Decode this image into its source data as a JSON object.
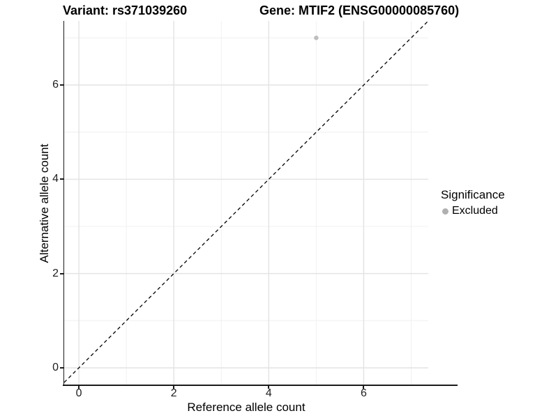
{
  "chart_data": {
    "type": "scatter",
    "title_left": "Variant: rs371039260",
    "title_right": "Gene: MTIF2 (ENSG00000085760)",
    "xlabel": "Reference allele count",
    "ylabel": "Alternative allele count",
    "xlim": [
      -0.31,
      7.36
    ],
    "ylim": [
      -0.37,
      7.36
    ],
    "x_ticks": [
      0,
      2,
      4,
      6
    ],
    "y_ticks": [
      0,
      2,
      4,
      6
    ],
    "x_minor": [
      1,
      3,
      5,
      7
    ],
    "y_minor": [
      1,
      3,
      5,
      7
    ],
    "grid": true,
    "legend_position": "right",
    "identity_line": {
      "equation": "y = x",
      "style": "dashed",
      "color": "#000000"
    },
    "points": [
      {
        "x": 5,
        "y": 7,
        "series": "Excluded",
        "color": "#bdbdbd"
      }
    ],
    "legend": {
      "title": "Significance",
      "entries": [
        {
          "label": "Excluded",
          "color": "#b0b0b0"
        }
      ]
    },
    "colors": {
      "major_grid": "#e4e4e4",
      "minor_grid": "#f0f0f0",
      "axis": "#1a1a1a",
      "background": "#ffffff"
    }
  }
}
